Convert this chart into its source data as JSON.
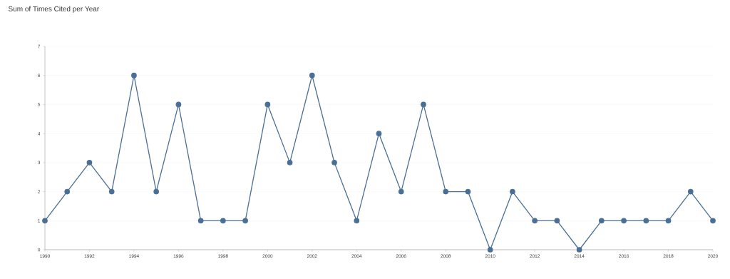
{
  "chart_data": {
    "type": "line",
    "title": "Sum of Times Cited per Year",
    "x": [
      1990,
      1991,
      1992,
      1993,
      1994,
      1995,
      1996,
      1997,
      1998,
      1999,
      2000,
      2001,
      2002,
      2003,
      2004,
      2005,
      2006,
      2007,
      2008,
      2009,
      2010,
      2011,
      2012,
      2013,
      2014,
      2015,
      2016,
      2017,
      2018,
      2019,
      2020
    ],
    "values": [
      1,
      2,
      3,
      2,
      6,
      2,
      5,
      1,
      1,
      1,
      5,
      3,
      6,
      3,
      1,
      4,
      2,
      5,
      2,
      2,
      0,
      2,
      1,
      1,
      0,
      1,
      1,
      1,
      1,
      2,
      1
    ],
    "color": "#4a6f96",
    "marker": "circle",
    "line_style": "solid",
    "grid": "y",
    "xlim": [
      1990,
      2020
    ],
    "ylim": [
      0,
      7
    ],
    "xticks": [
      1990,
      1992,
      1994,
      1996,
      1998,
      2000,
      2002,
      2004,
      2006,
      2008,
      2010,
      2012,
      2014,
      2016,
      2018,
      2020
    ],
    "yticks": [
      0,
      1,
      2,
      3,
      4,
      5,
      6,
      7
    ]
  }
}
